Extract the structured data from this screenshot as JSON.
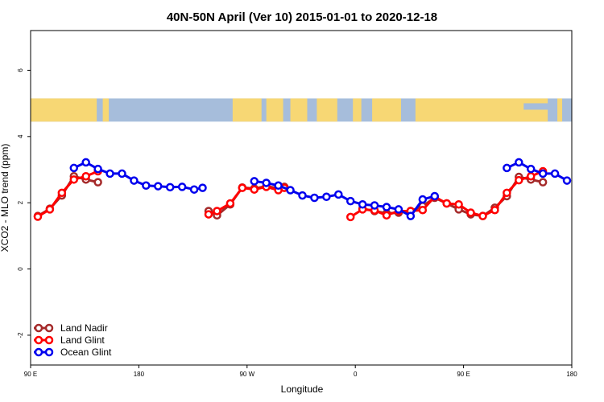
{
  "chart_data": {
    "type": "line",
    "title": "40N-50N April (Ver 10)   2015-01-01 to 2020-12-18",
    "xlabel": "Longitude",
    "ylabel": "XCO2 - MLO trend (ppm)",
    "xlim": [
      90,
      540
    ],
    "ylim": [
      -2.9,
      7.2
    ],
    "x_ticks": [
      {
        "value": 90,
        "label": "90 E"
      },
      {
        "value": 180,
        "label": "180"
      },
      {
        "value": 270,
        "label": "90 W"
      },
      {
        "value": 360,
        "label": "0"
      },
      {
        "value": 450,
        "label": "90 E"
      },
      {
        "value": 540,
        "label": "180"
      }
    ],
    "y_ticks": [
      {
        "value": -2,
        "label": "-2"
      },
      {
        "value": 0,
        "label": "0"
      },
      {
        "value": 2,
        "label": "2"
      },
      {
        "value": 4,
        "label": "4"
      },
      {
        "value": 6,
        "label": "6"
      }
    ],
    "map_strip": {
      "y_top": 5.15,
      "y_bottom": 4.45,
      "land_color": "#f7d774",
      "ocean_color": "#a6bddb"
    },
    "legend_position": "bottom-left",
    "series": [
      {
        "name": "Land Nadir",
        "color": "#a52a2a",
        "segments": [
          [
            [
              96,
              1.6
            ],
            [
              106,
              1.82
            ],
            [
              116,
              2.22
            ],
            [
              126,
              2.8
            ],
            [
              136,
              2.7
            ],
            [
              146,
              2.62
            ]
          ],
          [
            [
              238,
              1.75
            ],
            [
              245,
              1.62
            ],
            [
              256,
              1.95
            ],
            [
              266,
              2.46
            ],
            [
              276,
              2.43
            ],
            [
              286,
              2.5
            ],
            [
              296,
              2.44
            ],
            [
              301,
              2.48
            ]
          ],
          [
            [
              366,
              1.82
            ],
            [
              376,
              1.75
            ],
            [
              386,
              1.68
            ],
            [
              396,
              1.7
            ],
            [
              406,
              1.75
            ],
            [
              416,
              1.9
            ],
            [
              426,
              2.15
            ],
            [
              436,
              1.98
            ],
            [
              446,
              1.8
            ],
            [
              456,
              1.65
            ],
            [
              466,
              1.6
            ],
            [
              476,
              1.85
            ],
            [
              486,
              2.2
            ],
            [
              496,
              2.78
            ],
            [
              506,
              2.7
            ],
            [
              516,
              2.62
            ]
          ]
        ]
      },
      {
        "name": "Land Glint",
        "color": "#ff0000",
        "segments": [
          [
            [
              96,
              1.58
            ],
            [
              106,
              1.8
            ],
            [
              116,
              2.3
            ],
            [
              126,
              2.7
            ],
            [
              136,
              2.8
            ],
            [
              146,
              2.95
            ]
          ],
          [
            [
              238,
              1.65
            ],
            [
              245,
              1.75
            ],
            [
              256,
              1.98
            ],
            [
              266,
              2.45
            ],
            [
              276,
              2.4
            ],
            [
              286,
              2.48
            ],
            [
              296,
              2.38
            ],
            [
              301,
              2.45
            ]
          ],
          [
            [
              356,
              1.57
            ],
            [
              366,
              1.8
            ],
            [
              376,
              1.77
            ],
            [
              386,
              1.62
            ],
            [
              396,
              1.75
            ],
            [
              406,
              1.75
            ],
            [
              416,
              1.78
            ],
            [
              426,
              2.18
            ],
            [
              436,
              1.98
            ],
            [
              446,
              1.95
            ],
            [
              456,
              1.7
            ],
            [
              466,
              1.6
            ],
            [
              476,
              1.78
            ],
            [
              486,
              2.3
            ],
            [
              496,
              2.68
            ],
            [
              506,
              2.8
            ],
            [
              516,
              2.95
            ]
          ]
        ]
      },
      {
        "name": "Ocean Glint",
        "color": "#0000ee",
        "segments": [
          [
            [
              126,
              3.05
            ],
            [
              136,
              3.22
            ],
            [
              146,
              3.02
            ],
            [
              156,
              2.88
            ],
            [
              166,
              2.88
            ],
            [
              176,
              2.67
            ],
            [
              186,
              2.52
            ],
            [
              196,
              2.5
            ],
            [
              206,
              2.47
            ],
            [
              216,
              2.48
            ],
            [
              226,
              2.4
            ],
            [
              233,
              2.45
            ]
          ],
          [
            [
              276,
              2.65
            ],
            [
              286,
              2.6
            ],
            [
              296,
              2.52
            ],
            [
              306,
              2.38
            ],
            [
              316,
              2.22
            ],
            [
              326,
              2.15
            ],
            [
              336,
              2.18
            ],
            [
              346,
              2.25
            ],
            [
              356,
              2.05
            ],
            [
              366,
              1.95
            ],
            [
              376,
              1.92
            ],
            [
              386,
              1.87
            ],
            [
              396,
              1.8
            ],
            [
              406,
              1.6
            ],
            [
              416,
              2.1
            ],
            [
              426,
              2.2
            ]
          ],
          [
            [
              486,
              3.05
            ],
            [
              496,
              3.22
            ],
            [
              506,
              3.02
            ],
            [
              516,
              2.88
            ],
            [
              526,
              2.88
            ],
            [
              536,
              2.67
            ]
          ]
        ]
      }
    ]
  }
}
